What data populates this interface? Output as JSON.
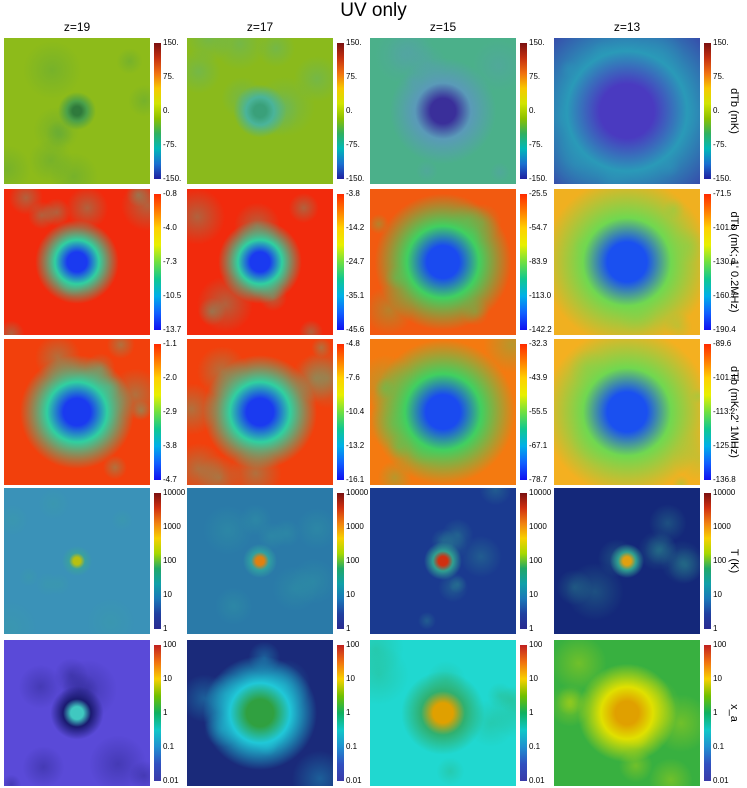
{
  "title": "UV only",
  "columns": [
    "z=19",
    "z=17",
    "z=15",
    "z=13"
  ],
  "rows": [
    {
      "label": "dTb (mK)",
      "ticks": [
        "150.",
        "75.",
        "0.",
        "-75.",
        "-150."
      ],
      "colormap": [
        "#7a1010",
        "#c43010",
        "#f07010",
        "#f7c800",
        "#d2e400",
        "#8cc000",
        "#30b060",
        "#00b8b8",
        "#1a70d0",
        "#2020a0"
      ],
      "panel_colors": [
        {
          "bg": "#8dbb1a",
          "center": "#2f7a3c",
          "glow": "#4aa04a",
          "spot": 10
        },
        {
          "bg": "#8aba1c",
          "center": "#3aa07a",
          "glow": "#4ab49a",
          "spot": 14
        },
        {
          "bg": "#4bb08a",
          "center": "#3a2f9a",
          "glow": "#5a9ab8",
          "spot": 28
        },
        {
          "bg": "#3a3aa8",
          "center": "#4a3ac0",
          "glow": "#2a9ab8",
          "spot": 60
        }
      ]
    },
    {
      "label": "dTb (mK; 1' 0.2MHz)",
      "tick_sets": [
        [
          "-0.8",
          "-4.0",
          "-7.3",
          "-10.5",
          "-13.7"
        ],
        [
          "-3.8",
          "-14.2",
          "-24.7",
          "-35.1",
          "-45.6"
        ],
        [
          "-25.5",
          "-54.7",
          "-83.9",
          "-113.0",
          "-142.2"
        ],
        [
          "-71.5",
          "-101.2",
          "-130.9",
          "-160.7",
          "-190.4"
        ]
      ],
      "colormap": [
        "#ff2a00",
        "#ff7a00",
        "#ffd000",
        "#e8f000",
        "#70e040",
        "#10c890",
        "#00b0e8",
        "#1060ff",
        "#1010f0"
      ],
      "panel_colors": [
        {
          "bg": "#f22a0c",
          "center": "#1a3af0",
          "glow": "#30d0a0",
          "spot": 22
        },
        {
          "bg": "#f22a0c",
          "center": "#1a3af0",
          "glow": "#30d0a0",
          "spot": 22
        },
        {
          "bg": "#f25a10",
          "center": "#1a4af0",
          "glow": "#40d060",
          "spot": 36
        },
        {
          "bg": "#f0b020",
          "center": "#1a50f0",
          "glow": "#70d850",
          "spot": 44
        }
      ]
    },
    {
      "label": "dTb (mK; 2' 1MHz)",
      "tick_sets": [
        [
          "-1.1",
          "-2.0",
          "-2.9",
          "-3.8",
          "-4.7"
        ],
        [
          "-4.8",
          "-7.6",
          "-10.4",
          "-13.2",
          "-16.1"
        ],
        [
          "-32.3",
          "-43.9",
          "-55.5",
          "-67.1",
          "-78.7"
        ],
        [
          "-89.6",
          "-101.4",
          "-113.2",
          "-125.0",
          "-136.8"
        ]
      ],
      "colormap": [
        "#ff2a00",
        "#ff7a00",
        "#ffd000",
        "#e8f000",
        "#70e040",
        "#10c890",
        "#00b0e8",
        "#1060ff",
        "#1010f0"
      ],
      "panel_colors": [
        {
          "bg": "#f2400c",
          "center": "#1a3af0",
          "glow": "#30d0a0",
          "spot": 30
        },
        {
          "bg": "#f2400c",
          "center": "#1a3af0",
          "glow": "#30d0a0",
          "spot": 30
        },
        {
          "bg": "#f47a10",
          "center": "#1a4af0",
          "glow": "#40d060",
          "spot": 38
        },
        {
          "bg": "#f4b020",
          "center": "#1a50f0",
          "glow": "#70d850",
          "spot": 44
        }
      ]
    },
    {
      "label": "T (K)",
      "ticks": [
        "10000",
        "1000",
        "100",
        "10",
        "1"
      ],
      "colormap": [
        "#7a1010",
        "#d03010",
        "#f08010",
        "#f7d000",
        "#a8d800",
        "#20a868",
        "#10a0a8",
        "#1a78b8",
        "#2040a0",
        "#2a2a90"
      ],
      "panel_colors": [
        {
          "bg": "#3a92b8",
          "center": "#b8c010",
          "glow": "#3aa0a0",
          "spot": 8
        },
        {
          "bg": "#2a7aa8",
          "center": "#e08010",
          "glow": "#30a0a0",
          "spot": 9
        },
        {
          "bg": "#1a3a90",
          "center": "#d03010",
          "glow": "#30a090",
          "spot": 10
        },
        {
          "bg": "#14287a",
          "center": "#e0a010",
          "glow": "#30a090",
          "spot": 9
        }
      ]
    },
    {
      "label": "x_a",
      "ticks": [
        "100",
        "10",
        "1",
        "0.1",
        "0.01"
      ],
      "colormap": [
        "#c02020",
        "#f07010",
        "#f8d000",
        "#70c000",
        "#10b060",
        "#10c8c8",
        "#2090d0",
        "#3050c0",
        "#3a3aa8"
      ],
      "panel_colors": [
        {
          "bg": "#5a4ad8",
          "center": "#40c8c0",
          "glow": "#1a1a70",
          "spot": 14
        },
        {
          "bg": "#1a2a7a",
          "center": "#30a040",
          "glow": "#20c8d8",
          "spot": 30
        },
        {
          "bg": "#20d8d0",
          "center": "#e0a000",
          "glow": "#30b070",
          "spot": 22
        },
        {
          "bg": "#38b040",
          "center": "#e0a000",
          "glow": "#e0e000",
          "spot": 26
        }
      ]
    }
  ]
}
